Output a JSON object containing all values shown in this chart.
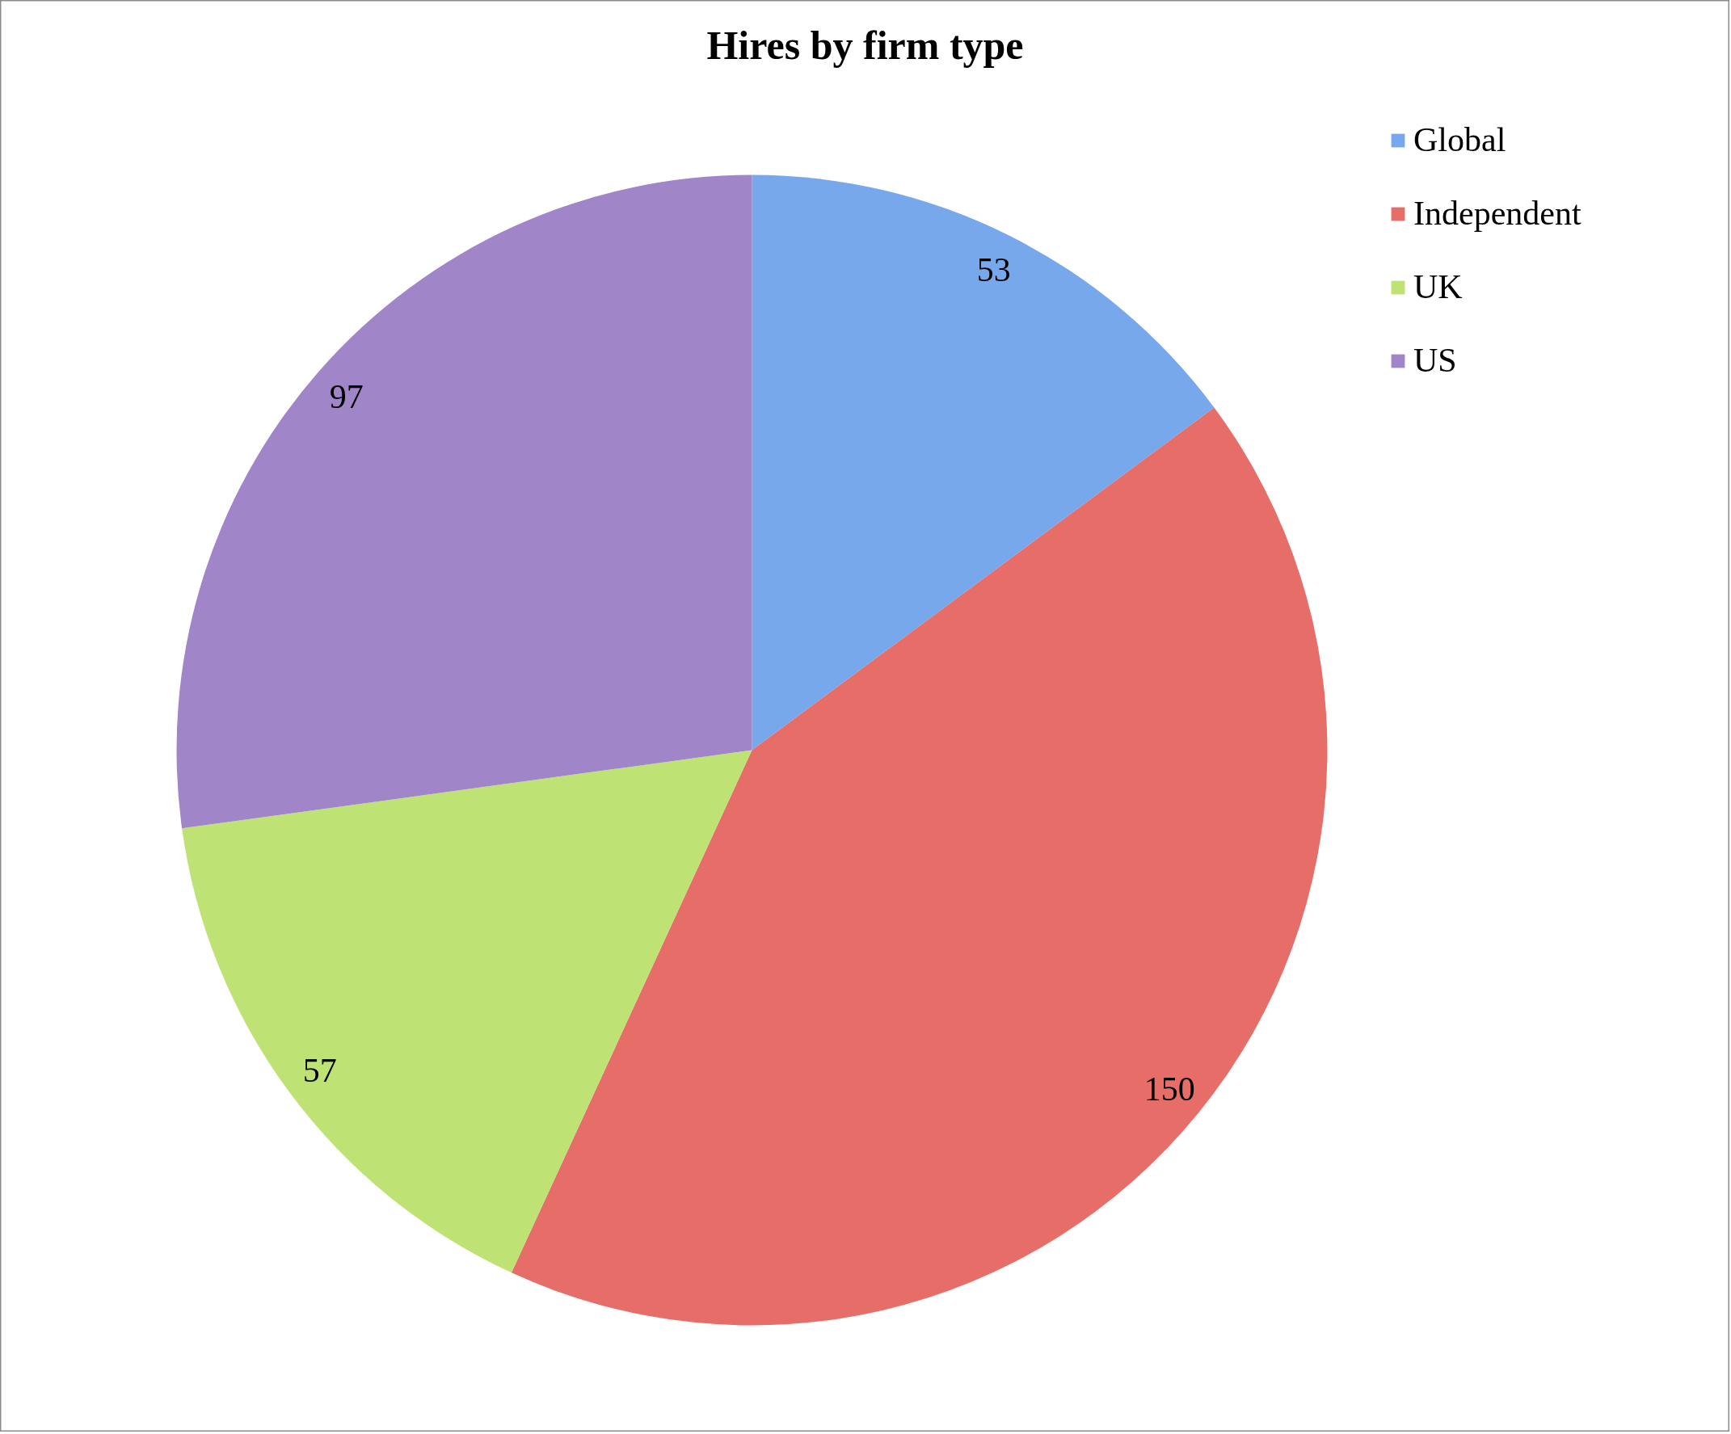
{
  "chart_data": {
    "type": "pie",
    "title": "Hires by firm type",
    "categories": [
      "Global",
      "Independent",
      "UK",
      "US"
    ],
    "values": [
      53,
      150,
      57,
      97
    ],
    "colors": [
      "#78a8ec",
      "#e76d69",
      "#bee374",
      "#a185c9"
    ],
    "data_labels": true,
    "legend": "top right"
  }
}
